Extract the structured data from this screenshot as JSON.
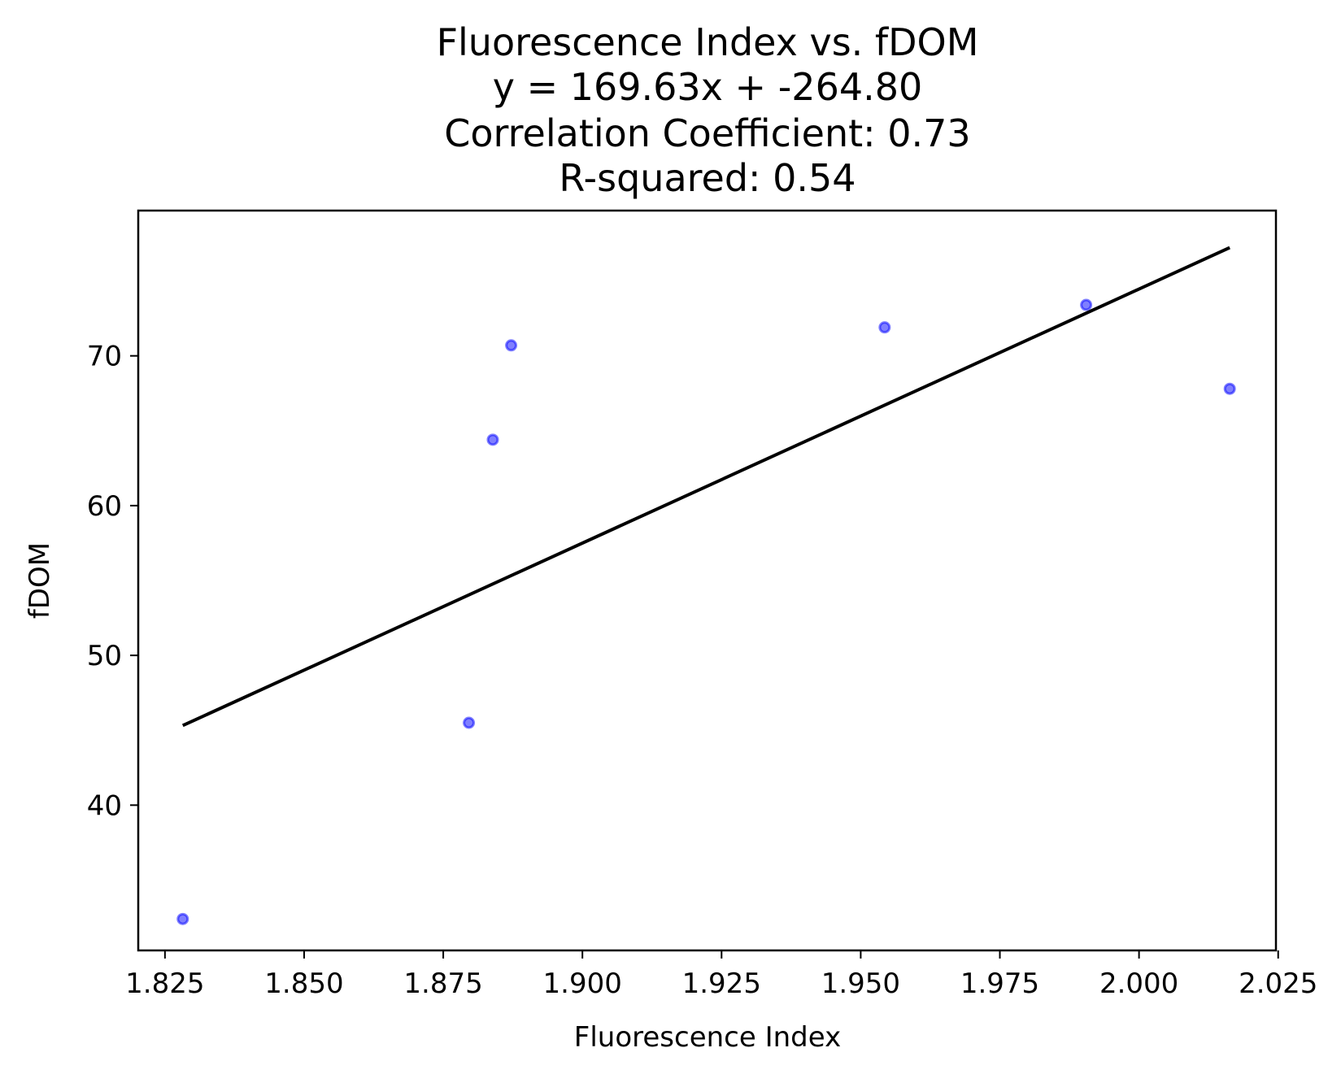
{
  "chart_data": {
    "type": "scatter",
    "title_lines": [
      "Fluorescence Index vs. fDOM",
      "y = 169.63x + -264.80",
      "Correlation Coefficient: 0.73",
      "R-squared: 0.54"
    ],
    "xlabel": "Fluorescence Index",
    "ylabel": "fDOM",
    "xlim": [
      1.8202,
      2.0246
    ],
    "ylim": [
      30.3,
      79.7
    ],
    "x_ticks": [
      1.825,
      1.85,
      1.875,
      1.9,
      1.925,
      1.95,
      1.975,
      2.0,
      2.025
    ],
    "x_tick_labels": [
      "1.825",
      "1.850",
      "1.875",
      "1.900",
      "1.925",
      "1.950",
      "1.975",
      "2.000",
      "2.025"
    ],
    "y_ticks": [
      40,
      50,
      60,
      70
    ],
    "y_tick_labels": [
      "40",
      "50",
      "60",
      "70"
    ],
    "series": [
      {
        "kind": "points",
        "color": "#0000ff",
        "x": [
          1.8282,
          1.8796,
          1.8839,
          1.8872,
          1.9543,
          1.9905,
          2.0163
        ],
        "y": [
          32.4,
          45.5,
          64.4,
          70.7,
          71.9,
          73.4,
          67.8
        ]
      }
    ],
    "fit_line": {
      "slope": 169.63,
      "intercept": -264.8,
      "x_range": [
        1.8282,
        2.0163
      ],
      "color": "#000000"
    },
    "grid": false,
    "legend": "none"
  }
}
